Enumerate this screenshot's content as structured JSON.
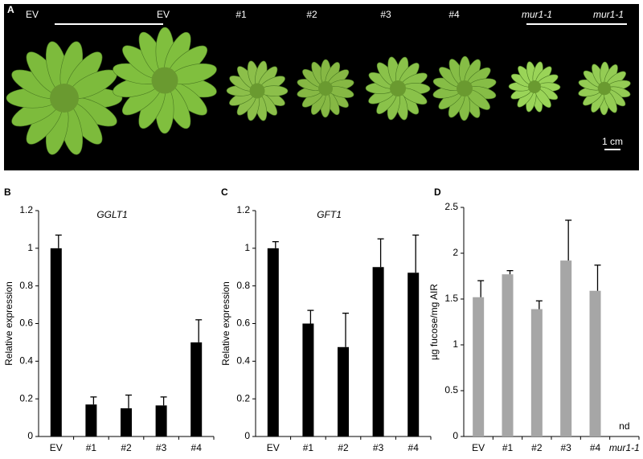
{
  "photo_panel": {
    "panel_label": "A",
    "labels": [
      "EV",
      "EV",
      "#1",
      "#2",
      "#3",
      "#4",
      "mur1-1",
      "mur1-1"
    ],
    "scale_bar": "1 cm"
  },
  "chart_data": [
    {
      "type": "bar",
      "panel_label": "B",
      "title": "GGLT1",
      "ylabel": "Relative expression",
      "categories": [
        "EV",
        "#1",
        "#2",
        "#3",
        "#4"
      ],
      "values": [
        1.0,
        0.17,
        0.15,
        0.165,
        0.5
      ],
      "errors": [
        0.07,
        0.04,
        0.07,
        0.045,
        0.12
      ],
      "color": "#000000",
      "ylim": [
        0,
        1.2
      ],
      "yticks": [
        0,
        0.2,
        0.4,
        0.6,
        0.8,
        1,
        1.2
      ]
    },
    {
      "type": "bar",
      "panel_label": "C",
      "title": "GFT1",
      "ylabel": "Relative expression",
      "categories": [
        "EV",
        "#1",
        "#2",
        "#3",
        "#4"
      ],
      "values": [
        1.0,
        0.6,
        0.475,
        0.9,
        0.87
      ],
      "errors": [
        0.035,
        0.07,
        0.18,
        0.15,
        0.2
      ],
      "color": "#000000",
      "ylim": [
        0,
        1.2
      ],
      "yticks": [
        0,
        0.2,
        0.4,
        0.6,
        0.8,
        1,
        1.2
      ]
    },
    {
      "type": "bar",
      "panel_label": "D",
      "ylabel": "µg fucose/mg AIR",
      "categories": [
        "EV",
        "#1",
        "#2",
        "#3",
        "#4",
        "mur1-1"
      ],
      "values": [
        1.52,
        1.77,
        1.39,
        1.92,
        1.59,
        null
      ],
      "errors": [
        0.18,
        0.04,
        0.09,
        0.44,
        0.28,
        null
      ],
      "annotation": "nd",
      "color": "#a6a6a6",
      "ylim": [
        0,
        2.5
      ],
      "yticks": [
        0,
        0.5,
        1,
        1.5,
        2,
        2.5
      ]
    }
  ]
}
